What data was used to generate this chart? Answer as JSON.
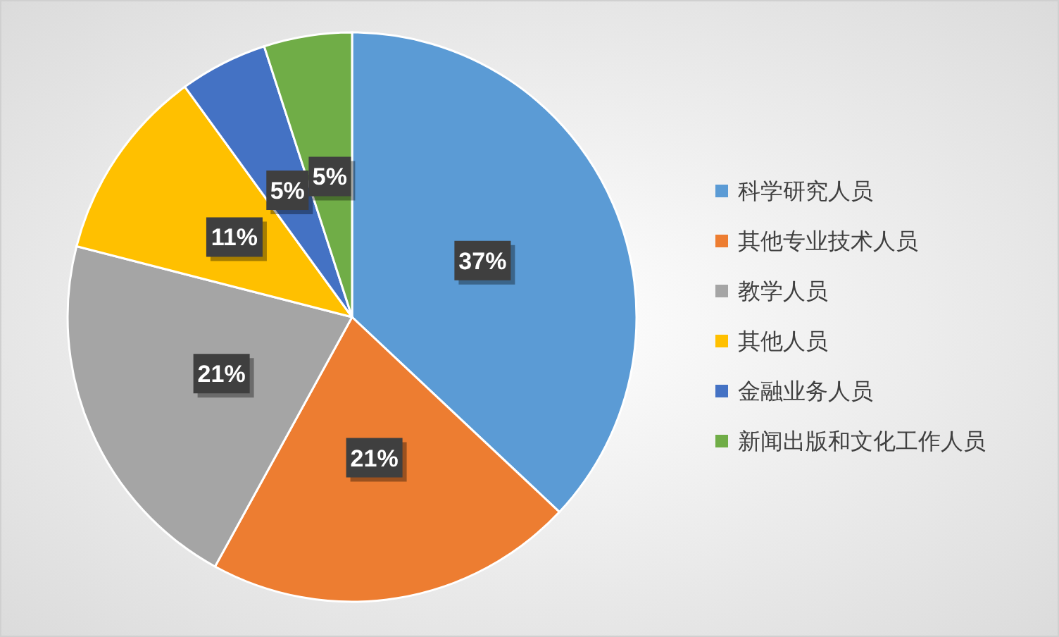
{
  "chart_data": {
    "type": "pie",
    "categories": [
      "科学研究人员",
      "其他专业技术人员",
      "教学人员",
      "其他人员",
      "金融业务人员",
      "新闻出版和文化工作人员"
    ],
    "values": [
      37,
      21,
      21,
      11,
      5,
      5
    ],
    "colors": [
      "#5b9bd5",
      "#ed7d31",
      "#a5a5a5",
      "#ffc000",
      "#4472c4",
      "#70ad47"
    ],
    "value_labels": [
      "37%",
      "21%",
      "21%",
      "11%",
      "5%",
      "5%"
    ],
    "legend": "right"
  }
}
